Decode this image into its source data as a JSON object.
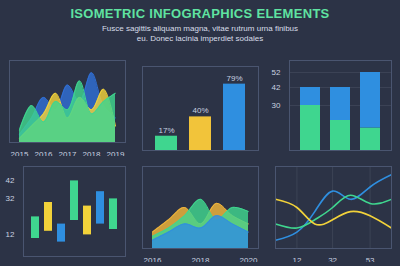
{
  "title": "ISOMETRIC INFOGRAPHICS ELEMENTS",
  "subtitle": "Fusce sagittis aliquam magna, vitae rutrum urna finibus eu. Donec lacinia imperdiet sodales",
  "chart_data": [
    {
      "type": "area",
      "categories": [
        "2015",
        null,
        "2016",
        null,
        "2017",
        null,
        "2018",
        null,
        "2019"
      ],
      "ylim": [
        0,
        100
      ],
      "tick_labels": "x",
      "series": [
        {
          "color": "#2f6fd6",
          "values": [
            10,
            30,
            55,
            40,
            70,
            50,
            85,
            45,
            30
          ]
        },
        {
          "color": "#f2d23a",
          "values": [
            5,
            20,
            35,
            60,
            30,
            55,
            40,
            65,
            20
          ]
        },
        {
          "color": "#3fd68f",
          "values": [
            15,
            45,
            25,
            50,
            40,
            75,
            35,
            50,
            60
          ]
        }
      ]
    },
    {
      "type": "bar",
      "categories": [
        null,
        null,
        null
      ],
      "values": [
        17,
        40,
        79
      ],
      "value_labels": [
        "17%",
        "40%",
        "79%"
      ],
      "data_labels": true,
      "colors": [
        "#3fd68f",
        "#f2c43a",
        "#2f8fe0"
      ],
      "ylim": [
        0,
        100
      ],
      "tick_labels": false
    },
    {
      "type": "bar",
      "stacked": true,
      "categories": [
        null,
        null,
        null
      ],
      "series": [
        {
          "color": "#3fd68f",
          "values": [
            30,
            20,
            15
          ]
        },
        {
          "color": "#2f8fe0",
          "values": [
            12,
            22,
            37
          ]
        }
      ],
      "ylim": [
        0,
        60
      ],
      "yticks": [
        30,
        42,
        52
      ],
      "grid": true,
      "tick_labels": "y"
    },
    {
      "type": "range_bar",
      "categories": [
        null,
        null,
        null,
        null,
        null,
        null,
        null
      ],
      "low": [
        10,
        14,
        8,
        20,
        12,
        18,
        15
      ],
      "high": [
        22,
        30,
        18,
        42,
        28,
        36,
        32
      ],
      "colors": [
        "#3fd68f",
        "#f2d23a",
        "#2f8fe0",
        "#3fd68f",
        "#f2d23a",
        "#2f8fe0",
        "#3fd68f"
      ],
      "ylim": [
        0,
        50
      ],
      "yticks": [
        12,
        32,
        42
      ],
      "tick_labels": "y"
    },
    {
      "type": "area",
      "categories": [
        "2016",
        null,
        null,
        "2018",
        null,
        null,
        "2020"
      ],
      "ylim": [
        0,
        100
      ],
      "tick_labels": "x",
      "series": [
        {
          "color": "#f2b63a",
          "values": [
            20,
            35,
            50,
            30,
            55,
            40,
            30
          ]
        },
        {
          "color": "#3fd68f",
          "values": [
            15,
            25,
            40,
            60,
            35,
            50,
            45
          ]
        },
        {
          "color": "#2f8fe0",
          "values": [
            10,
            20,
            30,
            25,
            40,
            30,
            20
          ]
        }
      ]
    },
    {
      "type": "line",
      "x": [
        0,
        12,
        22,
        32,
        42,
        53,
        65
      ],
      "xlim": [
        0,
        65
      ],
      "xticks": [
        12,
        32,
        53
      ],
      "grid": true,
      "ylim": [
        0,
        100
      ],
      "tick_labels": "x",
      "series": [
        {
          "color": "#2f8fe0",
          "values": [
            10,
            20,
            45,
            70,
            60,
            75,
            90
          ]
        },
        {
          "color": "#3fd68f",
          "values": [
            30,
            25,
            35,
            50,
            65,
            55,
            60
          ]
        },
        {
          "color": "#f2d23a",
          "values": [
            60,
            50,
            30,
            35,
            45,
            40,
            25
          ]
        }
      ]
    }
  ]
}
